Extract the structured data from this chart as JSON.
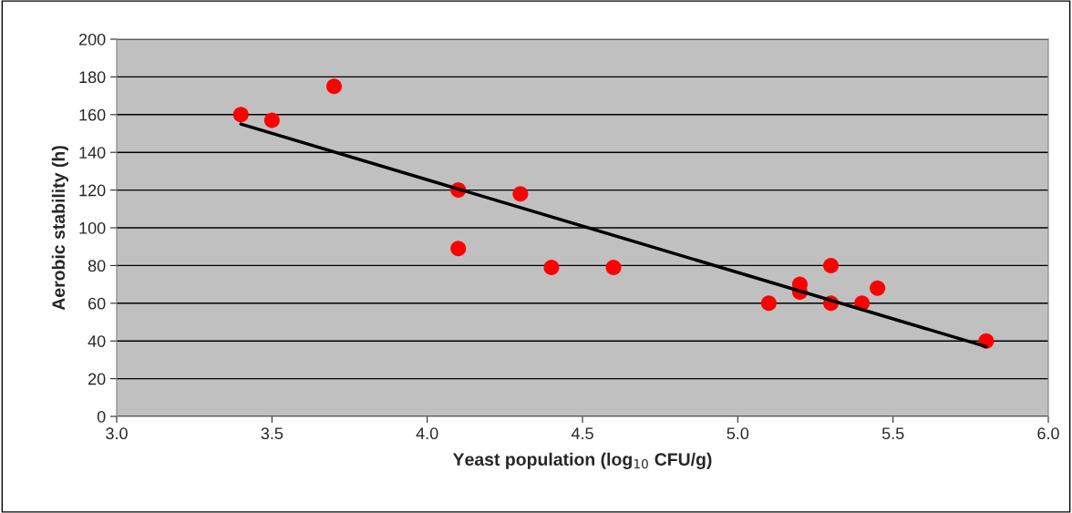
{
  "chart_data": {
    "type": "scatter",
    "xlabel": "Yeast population (log$_{10}$ CFU/g)",
    "ylabel": "Aerobic stability (h)",
    "xlim": [
      3,
      6
    ],
    "ylim": [
      0,
      200
    ],
    "xticks": [
      {
        "value": 3,
        "label": "3.0"
      },
      {
        "value": 3.5,
        "label": "3.5"
      },
      {
        "value": 4,
        "label": "4.0"
      },
      {
        "value": 4.5,
        "label": "4.5"
      },
      {
        "value": 5,
        "label": "5.0"
      },
      {
        "value": 5.5,
        "label": "5.5"
      },
      {
        "value": 6,
        "label": "6.0"
      }
    ],
    "yticks": [
      0,
      20,
      40,
      60,
      80,
      100,
      120,
      140,
      160,
      180,
      200
    ],
    "grid": "y",
    "series": [
      {
        "marker": "circle",
        "color": "#ff0000",
        "x": [
          3.4,
          3.5,
          3.7,
          4.1,
          4.1,
          4.3,
          4.4,
          4.6,
          5.1,
          5.2,
          5.2,
          5.3,
          5.3,
          5.4,
          5.45,
          5.8
        ],
        "values": [
          160,
          157,
          175,
          120,
          89,
          118,
          79,
          79,
          60,
          70,
          66,
          80,
          60,
          60,
          68,
          40
        ]
      },
      {
        "type": "line",
        "marker": "none",
        "color": "#000000",
        "x": [
          3.4,
          5.8
        ],
        "values": [
          155,
          37
        ]
      }
    ]
  }
}
